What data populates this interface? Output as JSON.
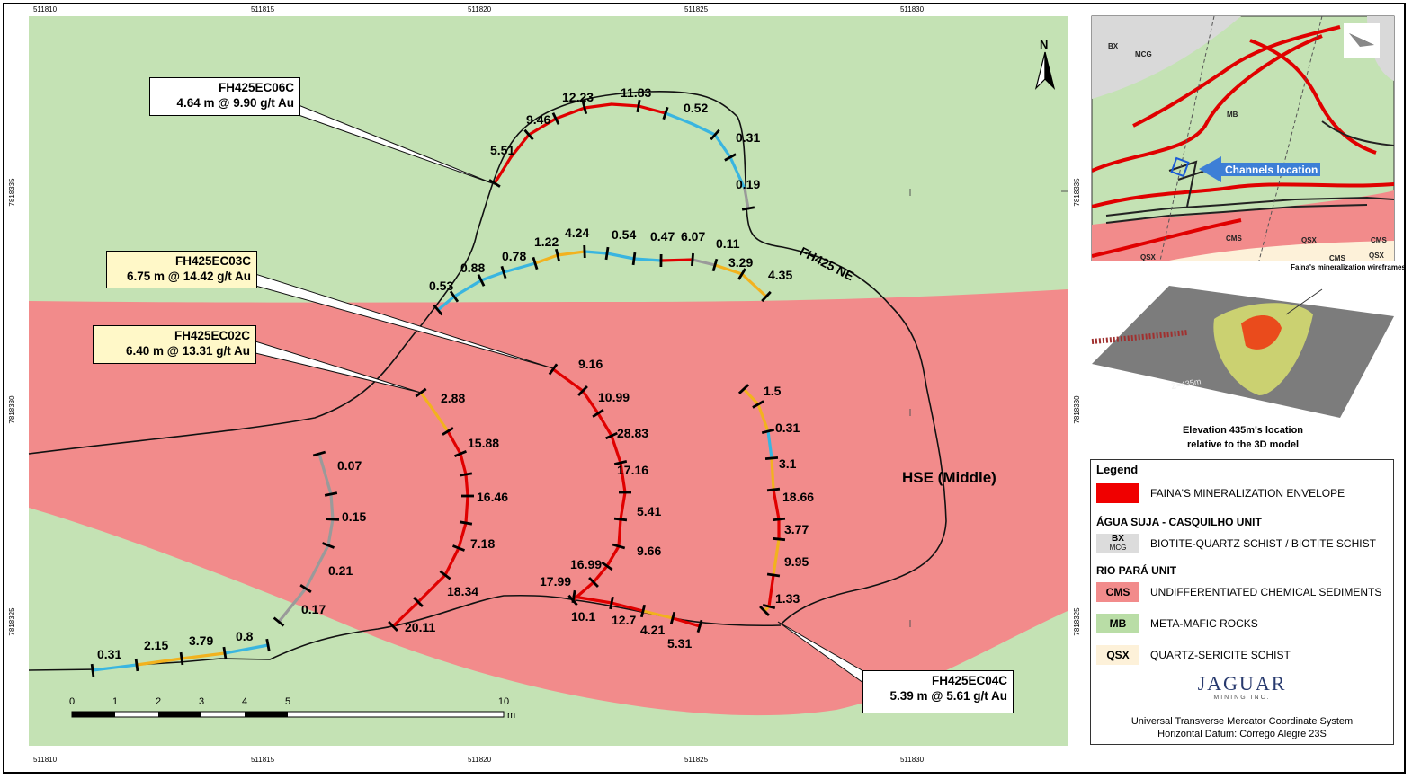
{
  "colors": {
    "cms_red": "#f28b8b",
    "mb_green": "#c4e2b4",
    "qsx_cream": "#fdf1d9",
    "envelope_red": "#f00000",
    "grade_high": "#e00000",
    "grade_mid": "#f2b21e",
    "grade_low": "#39b5e0",
    "grade_waste": "#9a9a9a",
    "callout_white": "#ffffff",
    "callout_yellow": "#fff8c8",
    "arrow_blue": "#3d7fd6"
  },
  "axes": {
    "x_ticks": [
      "511810",
      "511815",
      "511820",
      "511825",
      "511830"
    ],
    "y_ticks": [
      "7818335",
      "7818330",
      "7818325"
    ]
  },
  "north_label": "N",
  "labels": {
    "drift_ne": "FH425 NE",
    "hse_middle": "HSE (Middle)"
  },
  "callouts": {
    "ec06": {
      "id": "FH425EC06C",
      "result": "4.64 m @ 9.90 g/t Au"
    },
    "ec03": {
      "id": "FH425EC03C",
      "result": "6.75 m @ 14.42 g/t Au"
    },
    "ec02": {
      "id": "FH425EC02C",
      "result": "6.40 m @ 13.31 g/t Au"
    },
    "ec04": {
      "id": "FH425EC04C",
      "result": "5.39 m @ 5.61 g/t Au"
    }
  },
  "channels": {
    "ec06": [
      "5.51",
      "9.46",
      "12.23",
      "11.83",
      "0.52",
      "0.31",
      "0.19"
    ],
    "ec03_north": [
      "0.53",
      "0.88",
      "0.78",
      "1.22",
      "4.24",
      "0.54",
      "0.47",
      "6.07",
      "0.11",
      "3.29",
      "4.35"
    ],
    "ec03_south": [
      "9.16",
      "10.99",
      "28.83",
      "17.16",
      "5.41",
      "9.66",
      "16.99",
      "17.99"
    ],
    "ec02": [
      "2.88",
      "15.88",
      "16.46",
      "7.18",
      "18.34",
      "20.11"
    ],
    "west": [
      "0.07",
      "0.15",
      "0.21",
      "0.17"
    ],
    "ec04": [
      "1.5",
      "0.31",
      "3.1",
      "18.66",
      "3.77",
      "9.95",
      "1.33"
    ],
    "south_drift": [
      "10.1",
      "12.7",
      "4.21",
      "5.31"
    ],
    "sw_drift": [
      "0.31",
      "2.15",
      "3.79",
      "0.8"
    ]
  },
  "scale_bar": {
    "labels": [
      "0",
      "1",
      "2",
      "3",
      "4",
      "5",
      "10"
    ],
    "unit": "m"
  },
  "inset_map": {
    "labels": {
      "bx": "BX",
      "mcg": "MCG",
      "mb": "MB",
      "cms1": "CMS",
      "cms2": "CMS",
      "cms3": "CMS",
      "cms4": "CMS",
      "qsx1": "QSX",
      "qsx2": "QSX",
      "qsx3": "QSX"
    },
    "arrow_label": "Channels location"
  },
  "model_inset": {
    "wireframe_note": "Faina's mineralization wireframes",
    "z_label": "Z=435m",
    "caption_line1": "Elevation 435m's location",
    "caption_line2": "relative to the 3D model"
  },
  "legend": {
    "title": "Legend",
    "items": [
      {
        "type": "swatch",
        "code": "",
        "color": "#f00000",
        "label": "FAINA'S MINERALIZATION ENVELOPE"
      },
      {
        "type": "header",
        "label": "ÁGUA SUJA - CASQUILHO UNIT"
      },
      {
        "type": "swatch",
        "code": "BX",
        "code2": "MCG",
        "color": "#dcdcdc",
        "label": "BIOTITE-QUARTZ SCHIST /  BIOTITE SCHIST"
      },
      {
        "type": "header",
        "label": "RIO PARÁ UNIT"
      },
      {
        "type": "swatch",
        "code": "CMS",
        "color": "#f28b8b",
        "label": "UNDIFFERENTIATED CHEMICAL SEDIMENTS"
      },
      {
        "type": "swatch",
        "code": "MB",
        "color": "#b9dda6",
        "label": "META-MAFIC ROCKS"
      },
      {
        "type": "swatch",
        "code": "QSX",
        "color": "#fdf1d9",
        "label": "QUARTZ-SERICITE SCHIST"
      }
    ],
    "company_name": "JAGUAR",
    "company_sub": "MINING INC.",
    "crs_line1": "Universal Transverse Mercator Coordinate System",
    "crs_line2": "Horizontal Datum: Córrego Alegre 23S"
  }
}
